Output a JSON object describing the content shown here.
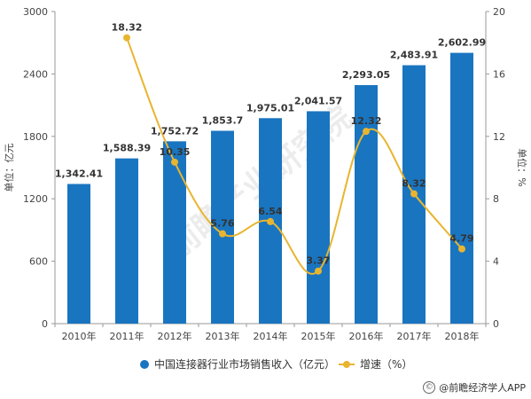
{
  "chart_data": {
    "type": "bar",
    "categories": [
      "2010年",
      "2011年",
      "2012年",
      "2013年",
      "2014年",
      "2015年",
      "2016年",
      "2017年",
      "2018年"
    ],
    "series": [
      {
        "name": "中国连接器行业市场销售收入（亿元）",
        "type": "bar",
        "axis": "left",
        "values": [
          1342.41,
          1588.39,
          1752.72,
          1853.7,
          1975.01,
          2041.57,
          2293.05,
          2483.91,
          2602.99
        ],
        "labels": [
          "1,342.41",
          "1,588.39",
          "1,752.72",
          "1,853.7",
          "1,975.01",
          "2,041.57",
          "2,293.05",
          "2,483.91",
          "2,602.99"
        ]
      },
      {
        "name": "增速（%）",
        "type": "line",
        "axis": "right",
        "values": [
          null,
          18.32,
          10.35,
          5.76,
          6.54,
          3.37,
          12.32,
          8.32,
          4.79
        ],
        "labels": [
          "",
          "18.32",
          "10.35",
          "5.76",
          "6.54",
          "3.37",
          "12.32",
          "8.32",
          "4.79"
        ]
      }
    ],
    "ylabel": "单位：亿元",
    "y2label": "单位：%",
    "ylim": [
      0,
      3000
    ],
    "yticks": [
      "0",
      "600",
      "1200",
      "1800",
      "2400",
      "3000"
    ],
    "y2lim": [
      0,
      20
    ],
    "y2ticks": [
      "0",
      "4",
      "8",
      "12",
      "16",
      "20"
    ],
    "legend_position": "bottom",
    "grid": false,
    "colors": {
      "bar": "#1a75c0",
      "line": "#e8b530"
    }
  },
  "source": "@前瞻经济学人APP",
  "watermark": "前瞻产业研究院"
}
